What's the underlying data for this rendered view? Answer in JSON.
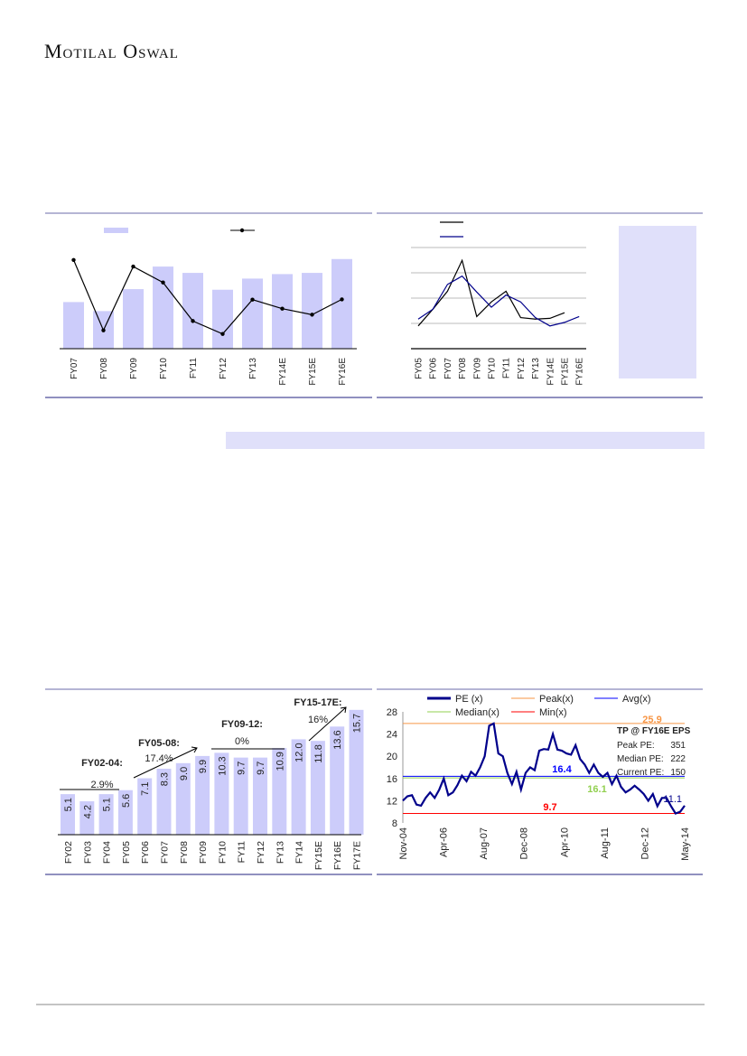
{
  "header": {
    "brand": "Motilal Oswal"
  },
  "colors": {
    "bar": "#ccccfa",
    "frame": "#6b6baa",
    "pe_line": "#00008b",
    "peak": "#f79646",
    "avg": "#0000ff",
    "median": "#92d050",
    "min": "#ff0000",
    "shade": "#e0e0fa"
  },
  "chart_data": [
    {
      "type": "bar",
      "categories": [
        "FY07",
        "FY08",
        "FY09",
        "FY10",
        "FY11",
        "FY12",
        "FY13",
        "FY14E",
        "FY15E",
        "FY16E"
      ],
      "series": [
        {
          "type": "bar",
          "values": [
            155,
            125,
            198,
            273,
            252,
            196,
            233,
            248,
            252,
            298
          ]
        },
        {
          "type": "line",
          "values": [
            295,
            61,
            273,
            220,
            92,
            49,
            163,
            133,
            113,
            164
          ]
        }
      ],
      "ylim": [
        0,
        310
      ]
    },
    {
      "type": "line",
      "categories": [
        "FY05",
        "FY06",
        "FY07",
        "FY08",
        "FY09",
        "FY10",
        "FY11",
        "FY12",
        "FY13",
        "FY14E",
        "FY15E",
        "FY16E"
      ],
      "series": [
        {
          "color": "#000000",
          "values": [
            0.9,
            1.56,
            2.27,
            3.49,
            1.27,
            1.85,
            2.27,
            1.23,
            1.17,
            1.2,
            1.42,
            null
          ]
        },
        {
          "color": "#00008b",
          "values": [
            1.17,
            1.56,
            2.54,
            2.87,
            2.24,
            1.64,
            2.12,
            1.85,
            1.23,
            0.9,
            1.04,
            1.27
          ]
        }
      ],
      "ylim": [
        0,
        4
      ],
      "grid": true
    },
    {
      "type": "bar",
      "categories": [
        "FY02",
        "FY03",
        "FY04",
        "FY05",
        "FY06",
        "FY07",
        "FY08",
        "FY09",
        "FY10",
        "FY11",
        "FY12",
        "FY13",
        "FY14",
        "FY15E",
        "FY16E",
        "FY17E"
      ],
      "values": [
        5.1,
        4.2,
        5.1,
        5.6,
        7.1,
        8.3,
        9.0,
        9.9,
        10.3,
        9.7,
        9.7,
        10.9,
        12.0,
        11.8,
        13.6,
        15.7
      ],
      "value_labels": [
        "5.1",
        "4.2",
        "5.1",
        "5.6",
        "7.1",
        "8.3",
        "9.0",
        "9.9",
        "10.3",
        "9.7",
        "9.7",
        "10.9",
        "12.0",
        "11.8",
        "13.6",
        "15.7"
      ],
      "annotations": [
        {
          "period": "FY02-04:",
          "growth": "2.9%"
        },
        {
          "period": "FY05-08:",
          "growth": "17.4%"
        },
        {
          "period": "FY09-12:",
          "growth": "0%"
        },
        {
          "period": "FY15-17E:",
          "growth": "16%"
        }
      ]
    },
    {
      "type": "line",
      "x_ticks": [
        "Nov-04",
        "Apr-06",
        "Aug-07",
        "Dec-08",
        "Apr-10",
        "Aug-11",
        "Dec-12",
        "May-14"
      ],
      "y_ticks": [
        "28",
        "24",
        "20",
        "16",
        "12",
        "8"
      ],
      "ylim": [
        8,
        28
      ],
      "legend": [
        "PE (x)",
        "Peak(x)",
        "Avg(x)",
        "Median(x)",
        "Min(x)"
      ],
      "pe_values": [
        12,
        12.8,
        13,
        11.3,
        11.1,
        12.5,
        13.5,
        12.5,
        14,
        16,
        13,
        13.5,
        14.8,
        16.5,
        15.5,
        17.2,
        16.5,
        18,
        20,
        25.5,
        25.9,
        20.5,
        20,
        17,
        15,
        17.2,
        14,
        17,
        18,
        17.5,
        21,
        21.3,
        21.2,
        24,
        21.2,
        21,
        20.5,
        20.3,
        22,
        19.5,
        18.5,
        17,
        18.5,
        17,
        16.3,
        17,
        15,
        16.5,
        14.5,
        13.5,
        14,
        14.7,
        14,
        13.2,
        12,
        13.2,
        11,
        12.5,
        12.5,
        11,
        9.7,
        10,
        11.1
      ],
      "reference_lines": {
        "peak": 25.9,
        "avg": 16.4,
        "median": 16.1,
        "min": 9.7
      },
      "labels": {
        "peak": "25.9",
        "avg": "16.4",
        "median": "16.1",
        "min": "9.7",
        "current": "11.1"
      },
      "tp_box": {
        "title": "TP @ FY16E EPS",
        "rows": [
          {
            "label": "Peak PE:",
            "value": "351"
          },
          {
            "label": "Median PE:",
            "value": "222"
          },
          {
            "label": "Current PE:",
            "value": "150"
          }
        ]
      }
    }
  ]
}
